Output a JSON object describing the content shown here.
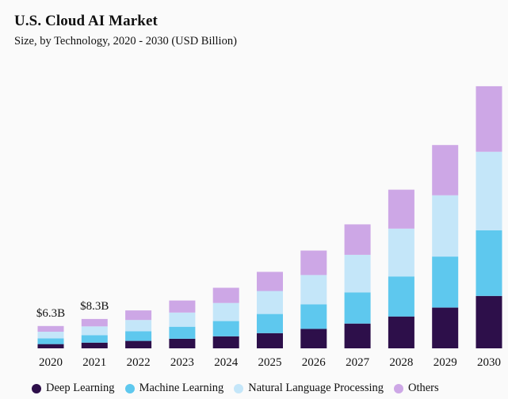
{
  "chart_data": {
    "type": "bar",
    "stacked": true,
    "title": "U.S. Cloud AI Market",
    "subtitle": "Size, by Technology, 2020 - 2030 (USD Billion)",
    "categories": [
      "2020",
      "2021",
      "2022",
      "2023",
      "2024",
      "2025",
      "2026",
      "2027",
      "2028",
      "2029",
      "2030"
    ],
    "series": [
      {
        "name": "Deep Learning",
        "color": "#2d0f4a",
        "values": [
          1.2,
          1.6,
          2.1,
          2.7,
          3.4,
          4.3,
          5.5,
          7.0,
          9.0,
          11.5,
          14.8
        ]
      },
      {
        "name": "Machine Learning",
        "color": "#5ec8ee",
        "values": [
          1.6,
          2.1,
          2.7,
          3.4,
          4.3,
          5.4,
          6.9,
          8.8,
          11.3,
          14.4,
          18.5
        ]
      },
      {
        "name": "Natural Language Processing",
        "color": "#c4e6f9",
        "values": [
          1.9,
          2.5,
          3.2,
          4.0,
          5.1,
          6.5,
          8.3,
          10.6,
          13.5,
          17.3,
          22.2
        ]
      },
      {
        "name": "Others",
        "color": "#cda7e6",
        "values": [
          1.6,
          2.1,
          2.7,
          3.4,
          4.3,
          5.4,
          6.9,
          8.6,
          11.0,
          14.2,
          18.5
        ]
      }
    ],
    "annotations": [
      {
        "category": "2020",
        "text": "$6.3B"
      },
      {
        "category": "2021",
        "text": "$8.3B"
      }
    ],
    "ylim": [
      0,
      76
    ],
    "grid": false,
    "legend_position": "bottom"
  }
}
